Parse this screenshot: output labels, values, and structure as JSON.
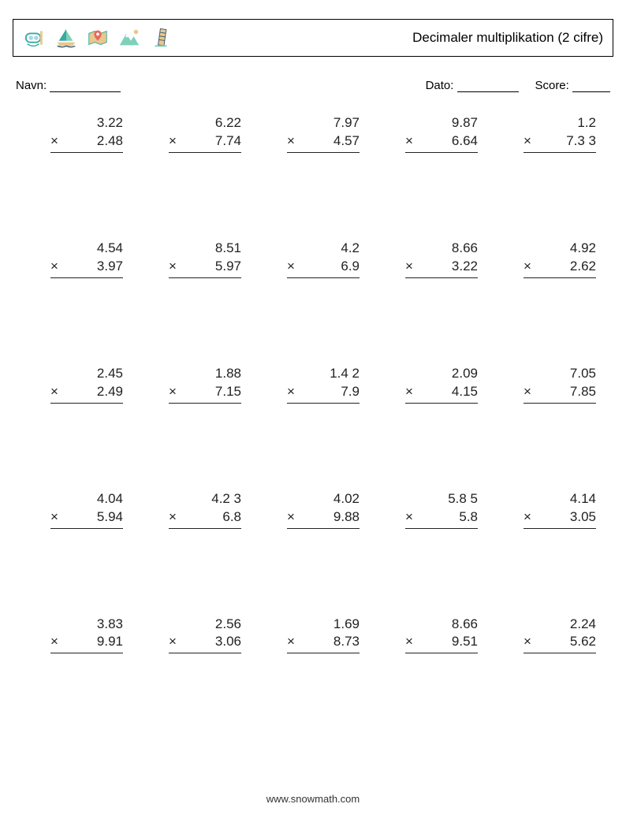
{
  "header": {
    "title": "Decimaler multiplikation (2 cifre)",
    "icons": [
      "snorkel",
      "sailboat",
      "map-pin",
      "mountain",
      "tower"
    ]
  },
  "info": {
    "name_label": "Navn:",
    "date_label": "Dato:",
    "score_label": "Score:",
    "name_blank_width": 90,
    "date_blank_width": 78,
    "score_blank_width": 48
  },
  "operator": "×",
  "problems": [
    [
      {
        "a": "3.22",
        "b": "2.48"
      },
      {
        "a": "6.22",
        "b": "7.74"
      },
      {
        "a": "7.97",
        "b": "4.57"
      },
      {
        "a": "9.87",
        "b": "6.64"
      },
      {
        "a": "1.2",
        "b": "7.3 3"
      }
    ],
    [
      {
        "a": "4.54",
        "b": "3.97"
      },
      {
        "a": "8.51",
        "b": "5.97"
      },
      {
        "a": "4.2",
        "b": "6.9"
      },
      {
        "a": "8.66",
        "b": "3.22"
      },
      {
        "a": "4.92",
        "b": "2.62"
      }
    ],
    [
      {
        "a": "2.45",
        "b": "2.49"
      },
      {
        "a": "1.88",
        "b": "7.15"
      },
      {
        "a": "1.4 2",
        "b": "7.9"
      },
      {
        "a": "2.09",
        "b": "4.15"
      },
      {
        "a": "7.05",
        "b": "7.85"
      }
    ],
    [
      {
        "a": "4.04",
        "b": "5.94"
      },
      {
        "a": "4.2 3",
        "b": "6.8"
      },
      {
        "a": "4.02",
        "b": "9.88"
      },
      {
        "a": "5.8 5",
        "b": "5.8"
      },
      {
        "a": "4.14",
        "b": "3.05"
      }
    ],
    [
      {
        "a": "3.83",
        "b": "9.91"
      },
      {
        "a": "2.56",
        "b": "3.06"
      },
      {
        "a": "1.69",
        "b": "8.73"
      },
      {
        "a": "8.66",
        "b": "9.51"
      },
      {
        "a": "2.24",
        "b": "5.62"
      }
    ]
  ],
  "footer": "www.snowmath.com",
  "colors": {
    "icon_teal": "#3aa9a0",
    "icon_mint": "#7ed1b9",
    "icon_coral": "#e86a5e",
    "icon_sand": "#e8c88c",
    "icon_sky": "#a7d8e8",
    "icon_navy": "#3f5a78",
    "text": "#222222",
    "border": "#000000"
  }
}
